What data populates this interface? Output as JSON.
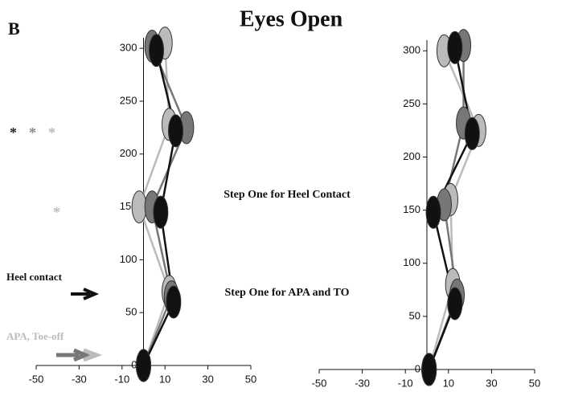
{
  "title": "Eyes Open",
  "panel_label": "B",
  "annotations": [
    "Step One for Heel Contact",
    "Step One for APA and TO",
    "Heel contact",
    "APA, Toe-off"
  ],
  "asterisks": [
    "*",
    "*",
    "*",
    "*"
  ],
  "chart_data": [
    {
      "type": "line",
      "xlim": [
        -50,
        50
      ],
      "xticks": [
        -50,
        -30,
        -10,
        10,
        30,
        50
      ],
      "ylim": [
        0,
        310
      ],
      "yticks": [
        0,
        50,
        100,
        150,
        200,
        250,
        300
      ],
      "series": [
        {
          "color": "#bbbbbb",
          "x": [
            0,
            12,
            -2,
            12,
            10
          ],
          "values": [
            0,
            70,
            150,
            228,
            305
          ]
        },
        {
          "color": "#777777",
          "x": [
            0,
            13,
            4,
            20,
            4
          ],
          "values": [
            0,
            65,
            150,
            225,
            302
          ]
        },
        {
          "color": "#111111",
          "x": [
            0,
            14,
            8,
            15,
            6
          ],
          "values": [
            0,
            60,
            145,
            222,
            298
          ]
        }
      ]
    },
    {
      "type": "line",
      "xlim": [
        -50,
        50
      ],
      "xticks": [
        -50,
        -30,
        -10,
        10,
        30,
        50
      ],
      "ylim": [
        0,
        310
      ],
      "yticks": [
        0,
        50,
        100,
        150,
        200,
        250,
        300
      ],
      "series": [
        {
          "color": "#bbbbbb",
          "x": [
            1,
            12,
            11,
            24,
            8
          ],
          "values": [
            0,
            80,
            160,
            225,
            300
          ]
        },
        {
          "color": "#777777",
          "x": [
            1,
            14,
            8,
            17,
            17
          ],
          "values": [
            0,
            70,
            155,
            232,
            305
          ]
        },
        {
          "color": "#111111",
          "x": [
            1,
            13,
            3,
            21,
            13
          ],
          "values": [
            0,
            62,
            148,
            222,
            303
          ]
        }
      ]
    }
  ]
}
